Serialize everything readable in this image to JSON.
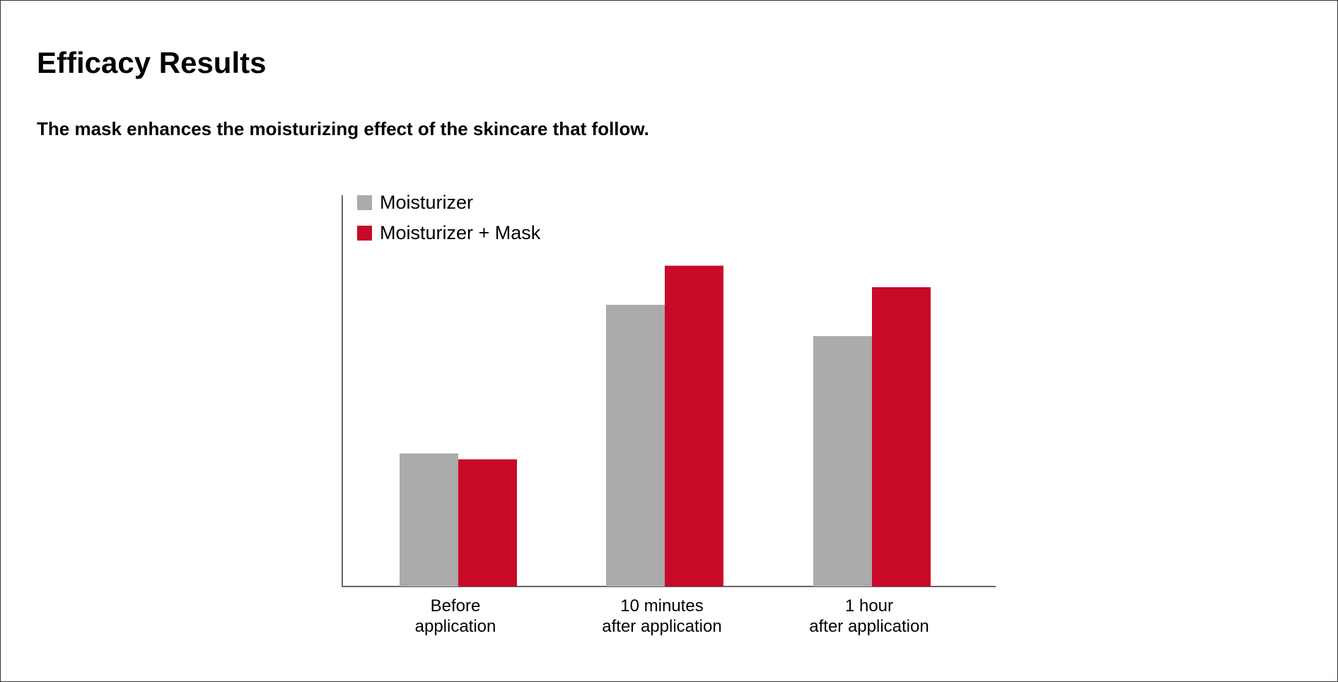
{
  "title": "Efficacy Results",
  "subtitle": "The mask enhances the moisturizing effect of the skincare that follow.",
  "colors": {
    "moisturizer": "#ababab",
    "moisturizer_mask": "#c80a28",
    "axis": "#666666"
  },
  "chart_data": {
    "type": "bar",
    "categories": [
      [
        "Before",
        "application"
      ],
      [
        "10 minutes",
        "after application"
      ],
      [
        "1 hour",
        "after application"
      ]
    ],
    "series": [
      {
        "name": "Moisturizer",
        "color": "#ababab",
        "values": [
          34,
          72,
          64
        ]
      },
      {
        "name": "Moisturizer + Mask",
        "color": "#c80a28",
        "values": [
          32.5,
          82,
          76.5
        ]
      }
    ],
    "ylim": [
      0,
      100
    ],
    "xlabel": "",
    "ylabel": "",
    "grid": false,
    "legend": "top-left"
  }
}
